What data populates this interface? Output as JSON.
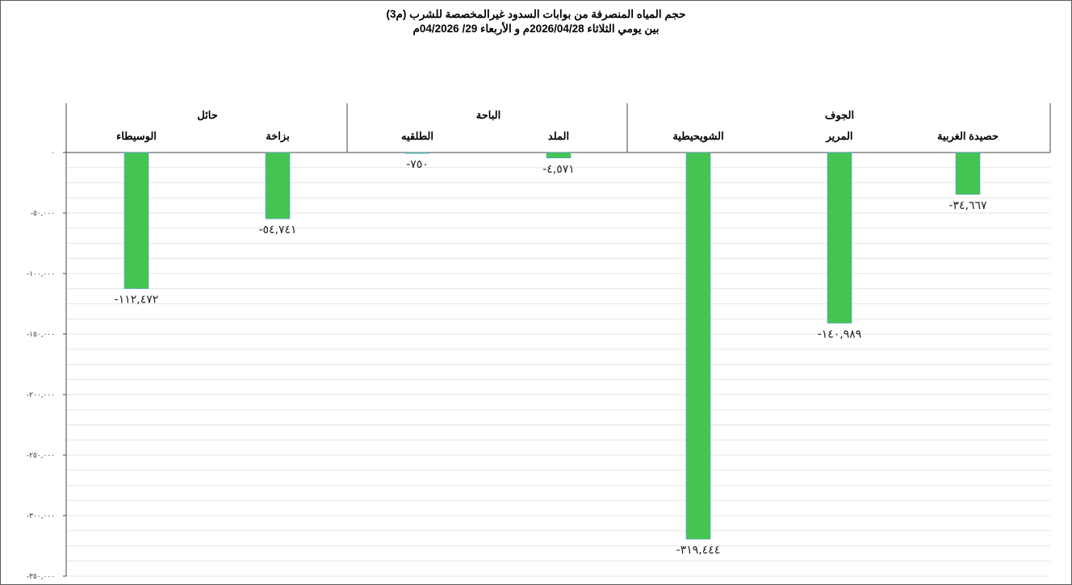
{
  "title_line1": "حجم المياه المنصرفة من بوابات السدود غيرالمخصصة للشرب (م3)",
  "title_line2": "بين يومي الثلاثاء 2026/04/28م و الأربعاء 29/ 04/2026م",
  "chart_data": {
    "type": "bar",
    "categories": [
      "حصيدة الغربية",
      "المرير",
      "الشويحيطية",
      "الملد",
      "الطلقيه",
      "بزاخة",
      "الوسيطاء"
    ],
    "groups": [
      {
        "name": "الجوف",
        "categories": [
          "حصيدة الغربية",
          "المرير",
          "الشويحيطية"
        ]
      },
      {
        "name": "الباحة",
        "categories": [
          "الملد",
          "الطلقيه"
        ]
      },
      {
        "name": "حائل",
        "categories": [
          "بزاخة",
          "الوسيطاء"
        ]
      }
    ],
    "values": [
      -34667,
      -140989,
      -319444,
      -4571,
      -750,
      -54741,
      -112472
    ],
    "value_labels": [
      "-٣٤,٦٦٧",
      "-١٤٠,٩٨٩",
      "-٣١٩,٤٤٤",
      "-٤,٥٧١",
      "-٧٥٠",
      "-٥٤,٧٤١",
      "-١١٢,٤٧٢"
    ],
    "ylim": [
      -350000,
      0
    ],
    "yticks": [
      0,
      -50000,
      -100000,
      -150000,
      -200000,
      -250000,
      -300000,
      -350000
    ],
    "ytick_labels": [
      "٠",
      "-٥٠,٠٠٠",
      "-١٠٠,٠٠٠",
      "-١٥٠,٠٠٠",
      "-٢٠٠,٠٠٠",
      "-٢٥٠,٠٠٠",
      "-٣٠٠,٠٠٠",
      "-٣٥٠,٠٠٠"
    ],
    "grid": true,
    "bar_color": "#44c553",
    "category_order": "right-to-left"
  }
}
